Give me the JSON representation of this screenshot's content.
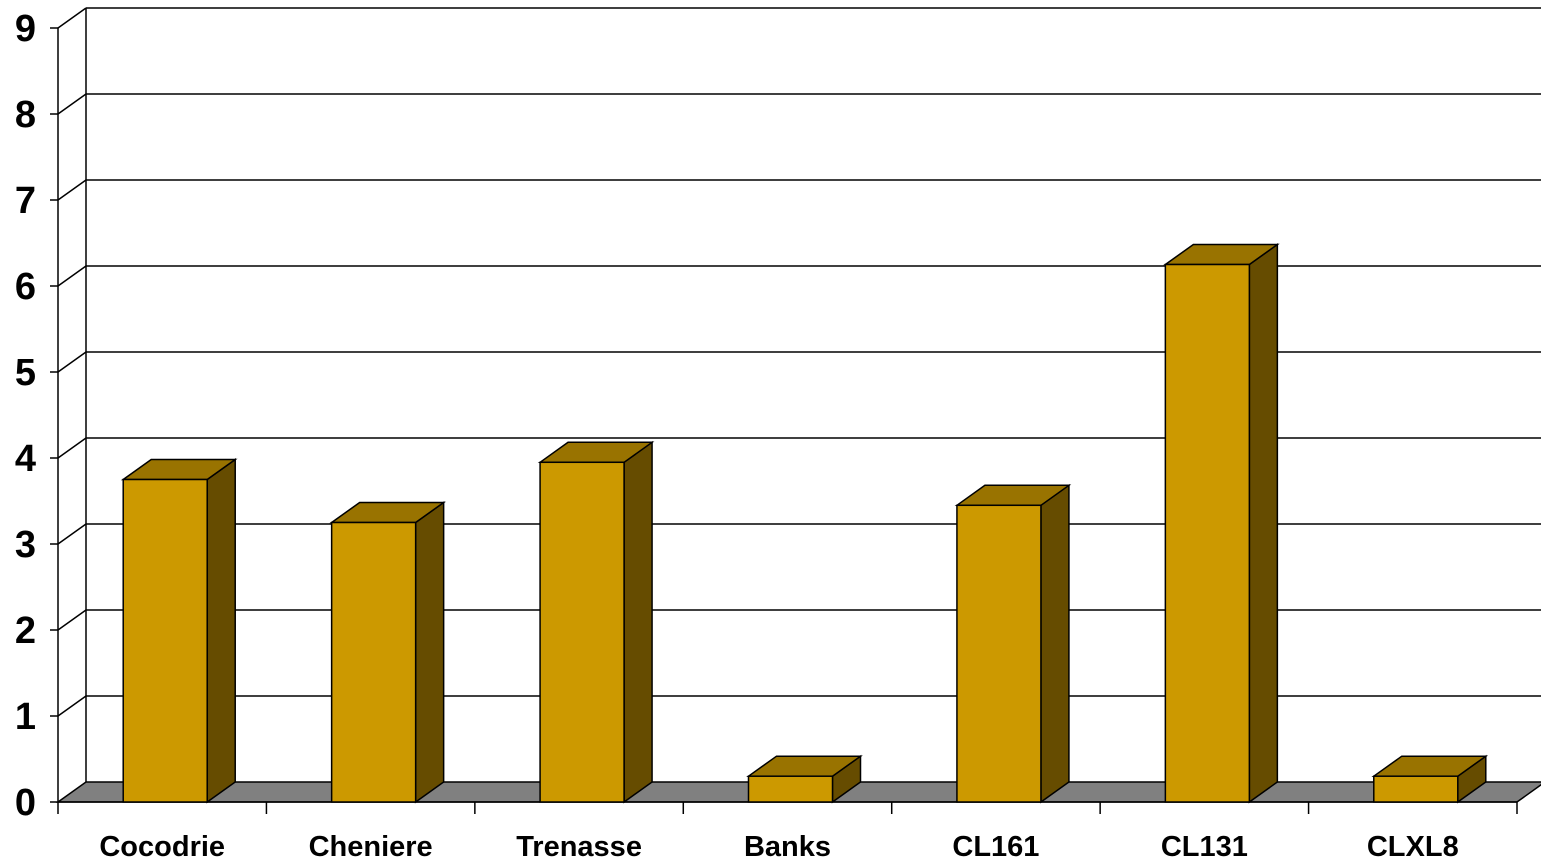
{
  "chart_data": {
    "type": "bar",
    "style": "3d",
    "categories": [
      "Cocodrie",
      "Cheniere",
      "Trenasse",
      "Banks",
      "CL161",
      "CL131",
      "CLXL8"
    ],
    "series": [
      {
        "values": [
          3.75,
          3.25,
          3.95,
          0.3,
          3.45,
          6.25,
          0.3
        ]
      }
    ],
    "ylim": [
      0,
      9
    ],
    "yticks": [
      "0",
      "1",
      "2",
      "3",
      "4",
      "5",
      "6",
      "7",
      "8",
      "9"
    ],
    "title": "",
    "xlabel": "",
    "ylabel": "",
    "grid": true,
    "legend": "none",
    "colors": {
      "bar_front": "#CC9900",
      "bar_top": "#997300",
      "bar_side": "#664C00",
      "floor": "#808080",
      "gridline": "#000000"
    }
  }
}
